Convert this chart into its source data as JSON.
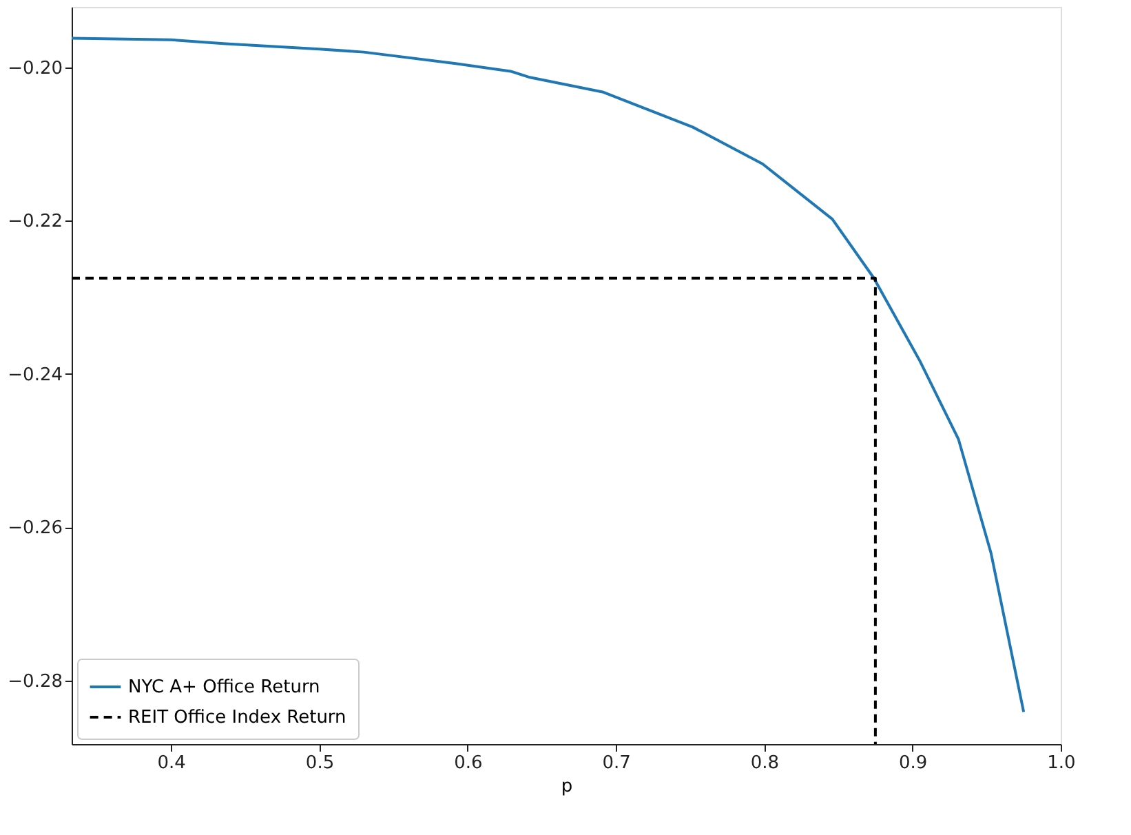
{
  "chart_data": {
    "type": "line",
    "xlabel": "p",
    "series": [
      {
        "name": "NYC A+ Office Return",
        "color": "#1f77b4",
        "line_style": "solid",
        "x": [
          0.333,
          0.4,
          0.437,
          0.5,
          0.53,
          0.592,
          0.629,
          0.642,
          0.691,
          0.752,
          0.799,
          0.846,
          0.874,
          0.905,
          0.931,
          0.953,
          0.975
        ],
        "values": [
          -0.1962,
          -0.1964,
          -0.1969,
          -0.1976,
          -0.198,
          -0.1995,
          -0.2005,
          -0.2013,
          -0.2032,
          -0.2078,
          -0.2126,
          -0.2198,
          -0.2275,
          -0.2383,
          -0.2485,
          -0.2634,
          -0.2841
        ]
      },
      {
        "name": "REIT Office Index Return",
        "color": "#000000",
        "line_style": "dashed",
        "x": [
          0.333,
          0.875,
          0.875
        ],
        "values": [
          -0.2275,
          -0.2275,
          -0.2883
        ]
      }
    ],
    "xlim": [
      0.333,
      1.0
    ],
    "ylim": [
      -0.2883,
      -0.1921
    ],
    "xticks": [
      0.4,
      0.5,
      0.6,
      0.7,
      0.8,
      0.9,
      {
        "value": 1.0,
        "label": "1.0"
      }
    ],
    "yticks": [
      {
        "value": -0.2,
        "label": "−0.20"
      },
      {
        "value": -0.22,
        "label": "−0.22"
      },
      {
        "value": -0.24,
        "label": "−0.24"
      },
      {
        "value": -0.26,
        "label": "−0.26"
      },
      {
        "value": -0.28,
        "label": "−0.28"
      }
    ],
    "grid": false,
    "legend": "bottom left",
    "marker": "none"
  }
}
